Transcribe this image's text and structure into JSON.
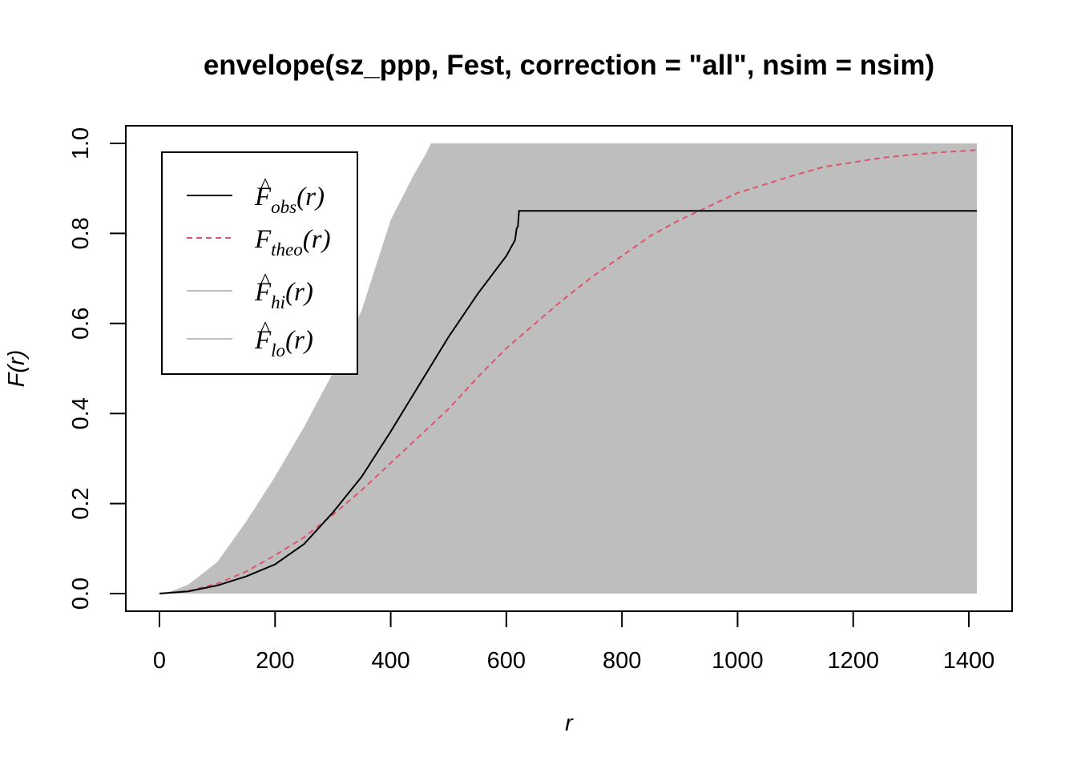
{
  "chart_data": {
    "type": "line",
    "title": "envelope(sz_ppp, Fest, correction = \"all\", nsim = nsim)",
    "xlabel": "r",
    "ylabel": "F(r)",
    "xlim": [
      0,
      1414
    ],
    "ylim": [
      0,
      1.0
    ],
    "x_ticks": [
      0,
      200,
      400,
      600,
      800,
      1000,
      1200,
      1400
    ],
    "y_ticks": [
      0.0,
      0.2,
      0.4,
      0.6,
      0.8,
      1.0
    ],
    "x_tick_labels": [
      "0",
      "200",
      "400",
      "600",
      "800",
      "1000",
      "1200",
      "1400"
    ],
    "y_tick_labels": [
      "0.0",
      "0.2",
      "0.4",
      "0.6",
      "0.8",
      "1.0"
    ],
    "legend_position": "top-left",
    "colors": {
      "obs": "#000000",
      "theo": "#DF536B",
      "envelope": "#BEBEBE"
    },
    "legend": [
      {
        "key": "obs",
        "main": "F",
        "sub": "obs",
        "arg": "(r)",
        "hat": true,
        "style": "solid"
      },
      {
        "key": "theo",
        "main": "F",
        "sub": "theo",
        "arg": "(r)",
        "hat": false,
        "style": "dashed"
      },
      {
        "key": "hi",
        "main": "F",
        "sub": "hi",
        "arg": "(r)",
        "hat": true,
        "style": "solid"
      },
      {
        "key": "lo",
        "main": "F",
        "sub": "lo",
        "arg": "(r)",
        "hat": true,
        "style": "solid"
      }
    ],
    "series": [
      {
        "key": "obs",
        "x": [
          0,
          50,
          100,
          150,
          200,
          250,
          300,
          350,
          400,
          450,
          500,
          550,
          600,
          615,
          618,
          620,
          622,
          700,
          800,
          900,
          1000,
          1100,
          1200,
          1300,
          1414
        ],
        "y": [
          0,
          0.005,
          0.018,
          0.038,
          0.065,
          0.11,
          0.18,
          0.26,
          0.36,
          0.465,
          0.57,
          0.665,
          0.75,
          0.785,
          0.812,
          0.815,
          0.85,
          0.85,
          0.85,
          0.85,
          0.85,
          0.85,
          0.85,
          0.85,
          0.85
        ]
      },
      {
        "key": "theo",
        "x": [
          0,
          50,
          100,
          150,
          200,
          250,
          300,
          350,
          400,
          450,
          500,
          550,
          600,
          650,
          700,
          750,
          800,
          850,
          900,
          950,
          1000,
          1050,
          1100,
          1150,
          1200,
          1250,
          1300,
          1350,
          1414
        ],
        "y": [
          0,
          0.006,
          0.022,
          0.049,
          0.085,
          0.125,
          0.175,
          0.23,
          0.29,
          0.35,
          0.41,
          0.48,
          0.545,
          0.6,
          0.655,
          0.705,
          0.75,
          0.795,
          0.83,
          0.86,
          0.89,
          0.91,
          0.93,
          0.948,
          0.958,
          0.968,
          0.975,
          0.98,
          0.985
        ]
      },
      {
        "key": "hi",
        "x": [
          0,
          20,
          50,
          100,
          150,
          200,
          250,
          300,
          350,
          400,
          420,
          440,
          460,
          470,
          1414
        ],
        "y": [
          0,
          0.005,
          0.02,
          0.07,
          0.16,
          0.26,
          0.37,
          0.49,
          0.63,
          0.83,
          0.88,
          0.93,
          0.975,
          1.0,
          1.0
        ]
      },
      {
        "key": "lo",
        "x": [
          0,
          1414
        ],
        "y": [
          0,
          0
        ]
      }
    ]
  }
}
